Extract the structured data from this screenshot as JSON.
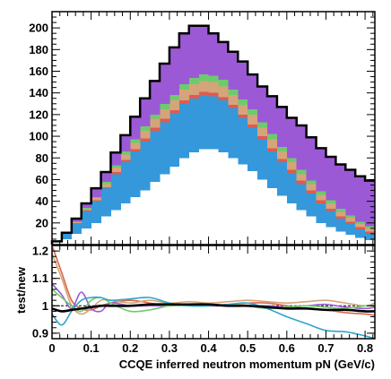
{
  "chart_data": [
    {
      "type": "area",
      "description_role": "stacked histogram (top panel)",
      "x_bin_edges": [
        0.0,
        0.025,
        0.05,
        0.075,
        0.1,
        0.125,
        0.15,
        0.175,
        0.2,
        0.225,
        0.25,
        0.275,
        0.3,
        0.325,
        0.35,
        0.375,
        0.4,
        0.425,
        0.45,
        0.475,
        0.5,
        0.525,
        0.55,
        0.575,
        0.6,
        0.625,
        0.65,
        0.675,
        0.7,
        0.725,
        0.75,
        0.775,
        0.8,
        0.825
      ],
      "xlim": [
        0,
        0.825
      ],
      "ylim": [
        0,
        215
      ],
      "y_ticks": [
        20,
        40,
        60,
        80,
        100,
        120,
        140,
        160,
        180,
        200
      ],
      "stack_order_bottom_to_top": [
        "white",
        "blue",
        "red",
        "orange",
        "green",
        "purple"
      ],
      "series": [
        {
          "name": "",
          "color": "#ffffff",
          "values": [
            2,
            5,
            10,
            15,
            20,
            26,
            32,
            38,
            44,
            50,
            58,
            65,
            72,
            80,
            85,
            88,
            88,
            85,
            80,
            74,
            68,
            60,
            52,
            45,
            38,
            32,
            26,
            20,
            16,
            12,
            9,
            6,
            4
          ]
        },
        {
          "name": "",
          "color": "#3498db",
          "values": [
            1,
            5,
            10,
            16,
            20,
            26,
            33,
            38,
            42,
            45,
            47,
            48,
            49,
            50,
            50,
            50,
            49,
            48,
            46,
            43,
            40,
            37,
            34,
            31,
            28,
            24,
            21,
            18,
            15,
            12,
            10,
            8,
            6
          ]
        },
        {
          "name": "",
          "color": "#e05a4f",
          "values": [
            0,
            0,
            0,
            1,
            1,
            1,
            2,
            2,
            2,
            3,
            3,
            3,
            3,
            3,
            3,
            3,
            3,
            3,
            3,
            3,
            3,
            3,
            3,
            3,
            3,
            3,
            3,
            3,
            2,
            2,
            2,
            2,
            2
          ]
        },
        {
          "name": "",
          "color": "#d6a47a",
          "values": [
            0,
            0,
            1,
            1,
            2,
            3,
            4,
            5,
            6,
            7,
            8,
            9,
            9,
            10,
            10,
            10,
            10,
            10,
            9,
            9,
            9,
            8,
            8,
            7,
            7,
            6,
            6,
            5,
            5,
            4,
            4,
            3,
            3
          ]
        },
        {
          "name": "",
          "color": "#6ccb6c",
          "values": [
            0,
            0,
            0,
            1,
            1,
            2,
            2,
            3,
            3,
            4,
            4,
            5,
            5,
            5,
            6,
            6,
            6,
            6,
            5,
            5,
            5,
            5,
            5,
            4,
            4,
            4,
            3,
            3,
            3,
            3,
            2,
            2,
            2
          ]
        },
        {
          "name": "",
          "color": "#9b59d6",
          "values": [
            0,
            1,
            3,
            4,
            8,
            9,
            12,
            15,
            21,
            26,
            31,
            37,
            44,
            47,
            48,
            45,
            39,
            35,
            35,
            35,
            32,
            33,
            35,
            37,
            37,
            41,
            40,
            40,
            40,
            41,
            42,
            42,
            42
          ]
        }
      ],
      "total_outline": {
        "color": "#000000",
        "values": [
          3,
          11,
          24,
          38,
          52,
          67,
          85,
          101,
          118,
          135,
          151,
          167,
          182,
          195,
          202,
          202,
          195,
          187,
          178,
          169,
          157,
          146,
          137,
          127,
          117,
          110,
          99,
          89,
          81,
          74,
          69,
          63,
          59
        ]
      }
    },
    {
      "type": "line",
      "description_role": "ratio panel (bottom)",
      "ylabel": "test/new",
      "xlabel": "CCQE inferred neutron momentum pN (GeV/c)",
      "xlim": [
        0,
        0.825
      ],
      "ylim": [
        0.88,
        1.22
      ],
      "y_ticks": [
        0.9,
        1.0,
        1.1,
        1.2
      ],
      "y_tick_labels": [
        "0.9",
        "1",
        "1.1",
        "1.2"
      ],
      "x_ticks": [
        0,
        0.1,
        0.2,
        0.3,
        0.4,
        0.5,
        0.6,
        0.7,
        0.8
      ],
      "x_tick_labels": [
        "0",
        "0.1",
        "0.2",
        "0.3",
        "0.4",
        "0.5",
        "0.6",
        "0.7",
        "0.8"
      ],
      "x": [
        0.0,
        0.025,
        0.05,
        0.075,
        0.1,
        0.125,
        0.15,
        0.2,
        0.25,
        0.3,
        0.35,
        0.4,
        0.45,
        0.5,
        0.55,
        0.6,
        0.65,
        0.7,
        0.75,
        0.8,
        0.825
      ],
      "series": [
        {
          "name": "",
          "color": "#d9664a",
          "values": [
            1.22,
            1.12,
            1.02,
            0.99,
            0.985,
            1.0,
            1.01,
            1.02,
            1.01,
            1.0,
            1.005,
            1.0,
            1.005,
            1.01,
            1.01,
            1.0,
            0.99,
            0.985,
            0.975,
            0.97,
            0.965
          ]
        },
        {
          "name": "",
          "color": "#d6a47a",
          "values": [
            1.19,
            1.1,
            1.0,
            0.97,
            0.99,
            1.02,
            1.02,
            1.01,
            1.02,
            1.01,
            1.015,
            1.01,
            1.015,
            1.02,
            1.015,
            1.01,
            1.015,
            1.02,
            1.01,
            1.0,
            1.01
          ]
        },
        {
          "name": "",
          "color": "#9b59d6",
          "values": [
            1.08,
            1.04,
            0.99,
            1.05,
            0.99,
            0.98,
            1.01,
            1.0,
            1.0,
            1.0,
            1.005,
            1.0,
            1.0,
            1.0,
            1.0,
            0.995,
            1.0,
            1.005,
            0.995,
            0.99,
            0.995
          ]
        },
        {
          "name": "",
          "color": "#6ccb6c",
          "values": [
            1.06,
            1.03,
            1.0,
            0.98,
            1.02,
            1.03,
            1.01,
            0.98,
            0.985,
            1.0,
            1.0,
            1.0,
            1.005,
            1.0,
            0.99,
            0.995,
            1.0,
            0.995,
            0.99,
            1.0,
            1.0
          ]
        },
        {
          "name": "",
          "color": "#2ea6c9",
          "values": [
            0.97,
            0.93,
            0.98,
            1.02,
            1.03,
            1.03,
            1.02,
            1.025,
            1.03,
            1.01,
            1.0,
            1.0,
            1.005,
            1.01,
            0.99,
            0.96,
            0.935,
            0.91,
            0.905,
            0.89,
            0.88
          ]
        },
        {
          "name": "",
          "color": "#000000",
          "values": [
            0.99,
            0.98,
            0.985,
            0.99,
            0.995,
            1.0,
            1.0,
            1.0,
            1.005,
            1.005,
            1.005,
            1.005,
            1.0,
            1.0,
            0.995,
            0.99,
            0.99,
            0.985,
            0.985,
            0.98,
            0.98
          ]
        }
      ]
    }
  ]
}
